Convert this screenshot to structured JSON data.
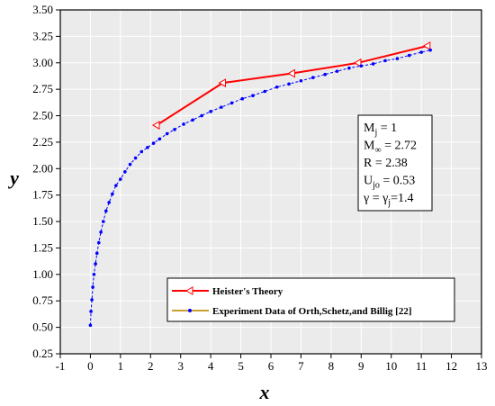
{
  "chart_data": {
    "type": "line",
    "xlabel": "x",
    "ylabel": "y",
    "xlim": [
      -1,
      13
    ],
    "ylim": [
      0.25,
      3.5
    ],
    "xticks": [
      -1,
      0,
      1,
      2,
      3,
      4,
      5,
      6,
      7,
      8,
      9,
      10,
      11,
      12,
      13
    ],
    "yticks": [
      "0.25",
      "0.50",
      "0.75",
      "1.00",
      "1.25",
      "1.50",
      "1.75",
      "2.00",
      "2.25",
      "2.50",
      "2.75",
      "3.00",
      "3.25",
      "3.50"
    ],
    "grid": true,
    "legend_position": "bottom-right",
    "series": [
      {
        "name": "Heister's Theory",
        "color": "#ff0000",
        "marker": "left-triangle",
        "x": [
          2.2,
          4.4,
          6.7,
          8.9,
          11.2
        ],
        "y": [
          2.41,
          2.81,
          2.9,
          3.0,
          3.16
        ]
      },
      {
        "name": "Experiment Data of Orth,Schetz,and Billig  [22]",
        "color": "#0000ff",
        "legend_line_color": "#c8a030",
        "marker": "dot",
        "x": [
          0.0,
          0.02,
          0.05,
          0.08,
          0.12,
          0.17,
          0.22,
          0.28,
          0.35,
          0.43,
          0.52,
          0.62,
          0.73,
          0.85,
          1.0,
          1.15,
          1.32,
          1.5,
          1.7,
          1.9,
          2.1,
          2.3,
          2.55,
          2.8,
          3.1,
          3.4,
          3.7,
          4.0,
          4.35,
          4.7,
          5.05,
          5.4,
          5.8,
          6.2,
          6.6,
          7.0,
          7.4,
          7.8,
          8.2,
          8.6,
          9.0,
          9.4,
          9.8,
          10.2,
          10.6,
          11.0,
          11.3
        ],
        "y": [
          0.52,
          0.65,
          0.76,
          0.88,
          1.0,
          1.1,
          1.2,
          1.3,
          1.4,
          1.5,
          1.6,
          1.68,
          1.76,
          1.84,
          1.9,
          1.97,
          2.04,
          2.1,
          2.16,
          2.2,
          2.24,
          2.28,
          2.33,
          2.37,
          2.42,
          2.46,
          2.5,
          2.54,
          2.58,
          2.62,
          2.66,
          2.69,
          2.73,
          2.77,
          2.8,
          2.83,
          2.86,
          2.89,
          2.92,
          2.95,
          2.97,
          2.99,
          3.02,
          3.04,
          3.07,
          3.1,
          3.12
        ]
      }
    ]
  },
  "params": [
    {
      "sym": "M",
      "sub": "j",
      "rest": "  =   1"
    },
    {
      "sym": "M",
      "sub": "∞",
      "rest": " = 2.72"
    },
    {
      "sym": " R",
      "sub": "",
      "rest": "  = 2.38"
    },
    {
      "sym": "U",
      "sub": "jo",
      "rest": "  = 0.53"
    },
    {
      "sym": "  γ",
      "sub": "",
      "rest": "  = γ",
      "sub2": "j",
      "rest2": "=1.4"
    }
  ]
}
